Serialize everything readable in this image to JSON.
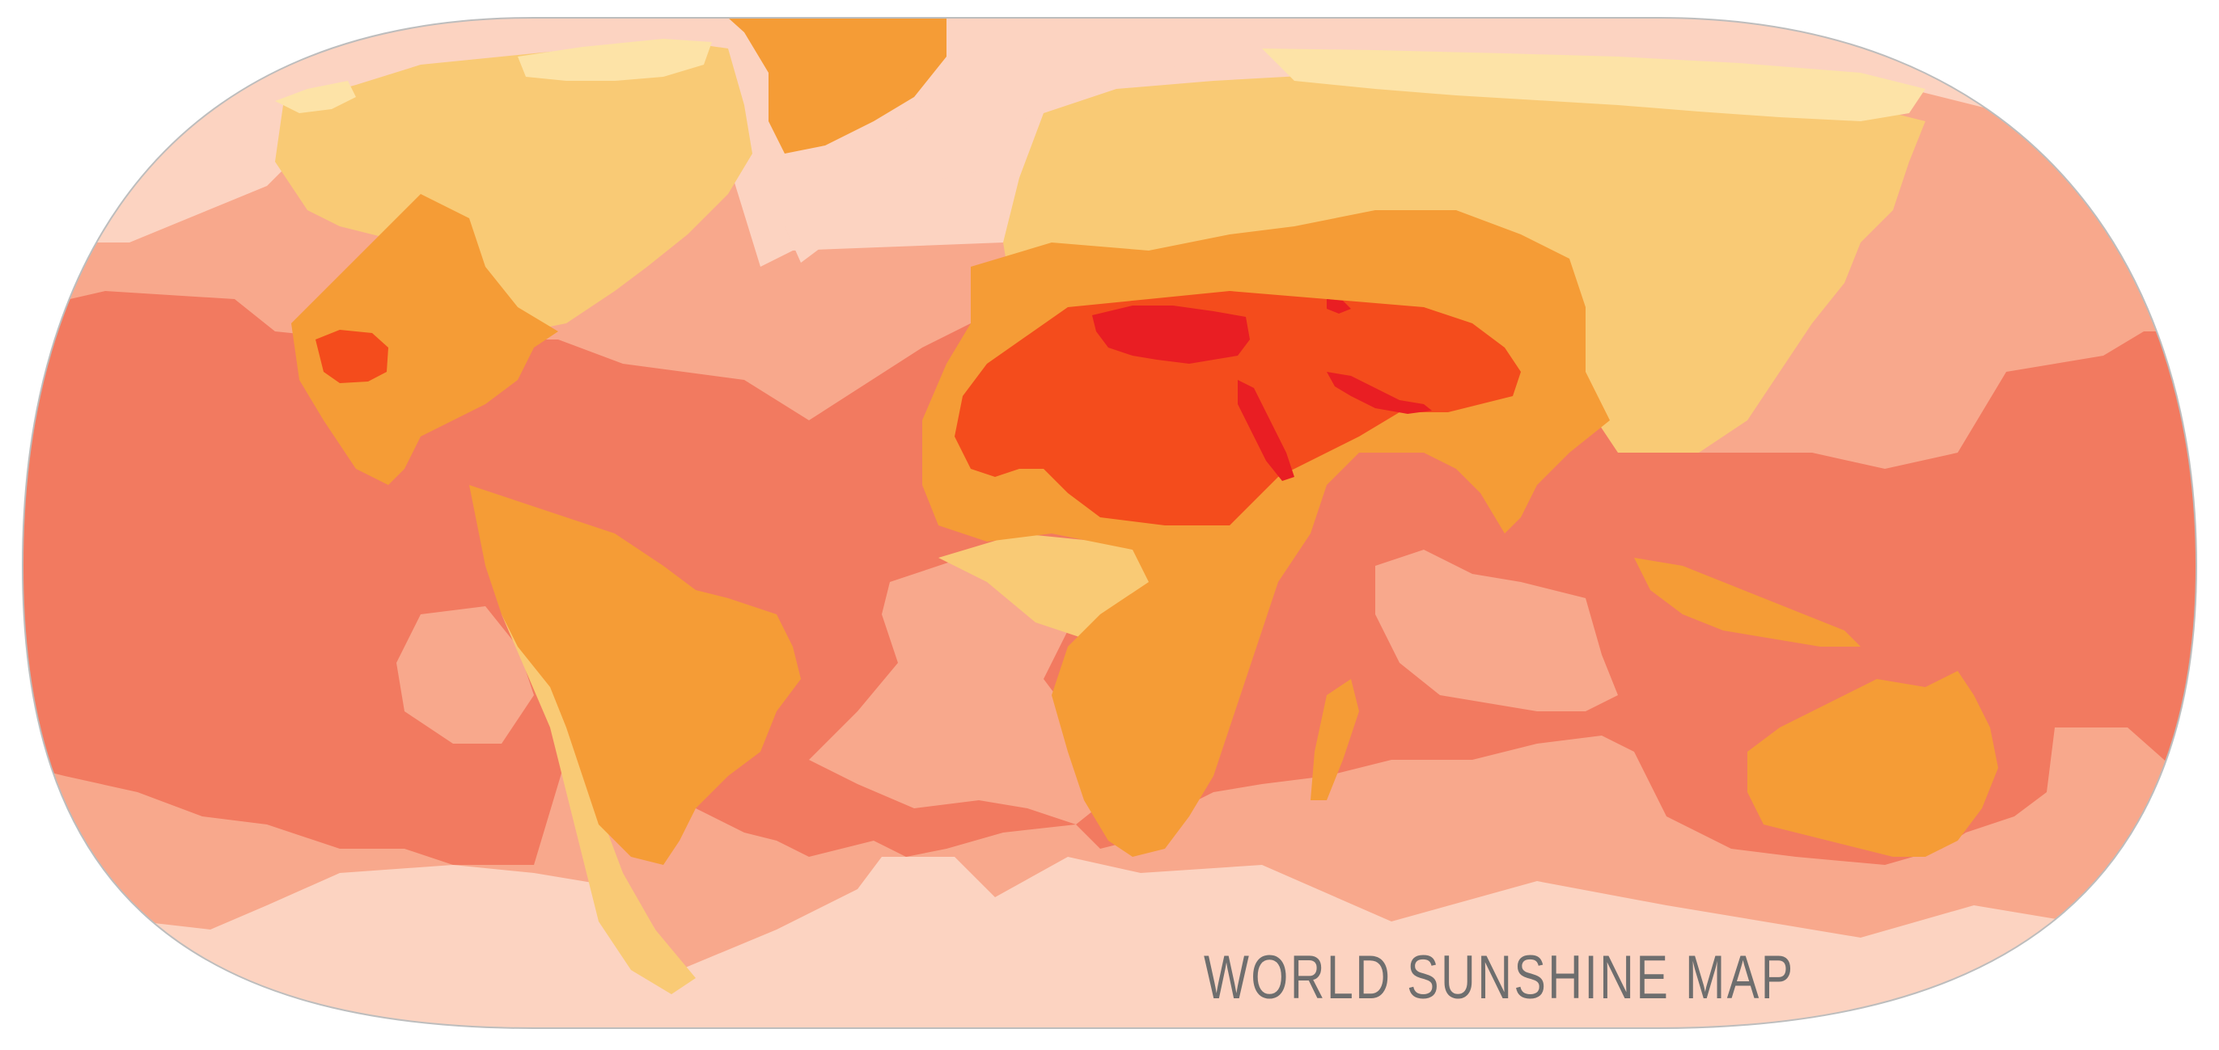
{
  "title": "WORLD SUNSHINE MAP",
  "zone_colors": {
    "lowest": "#FCD3C1",
    "low": "#F8A88C",
    "medium": "#F27A60",
    "high_light": "#F9CA75",
    "high": "#F59C36",
    "very_high": "#F44C1C",
    "peak": "#E91E23",
    "pale_land": "#FDE3A7",
    "outline": "#BDBDBD"
  }
}
